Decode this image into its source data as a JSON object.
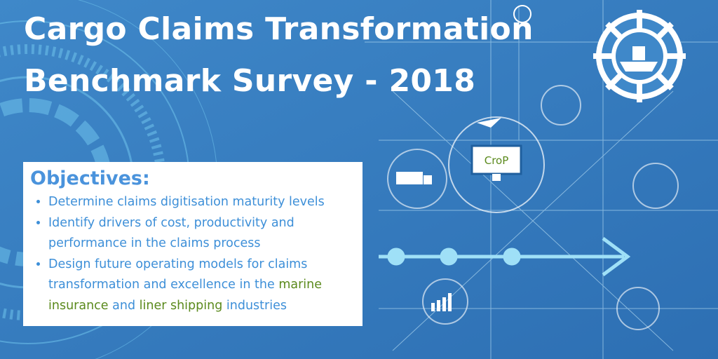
{
  "title": [
    "Cargo Claims Transformation",
    "Benchmark Survey - 2018"
  ],
  "logo_label": "CroP",
  "objectives": {
    "heading": "Objectives:",
    "items": [
      [
        {
          "text": "Determine claims digitisation maturity levels",
          "color": "#3d8fd8"
        }
      ],
      [
        {
          "text": "Identify drivers of cost, productivity and performance in the claims process",
          "color": "#3d8fd8"
        }
      ],
      [
        {
          "text": "Design future operating models for claims transformation and excellence in the ",
          "color": "#3d8fd8"
        },
        {
          "text": "marine insurance",
          "color": "#5b8a1d"
        },
        {
          "text": " and ",
          "color": "#3d8fd8"
        },
        {
          "text": "liner shipping",
          "color": "#5b8a1d"
        },
        {
          "text": " industries",
          "color": "#3d8fd8"
        }
      ]
    ]
  }
}
